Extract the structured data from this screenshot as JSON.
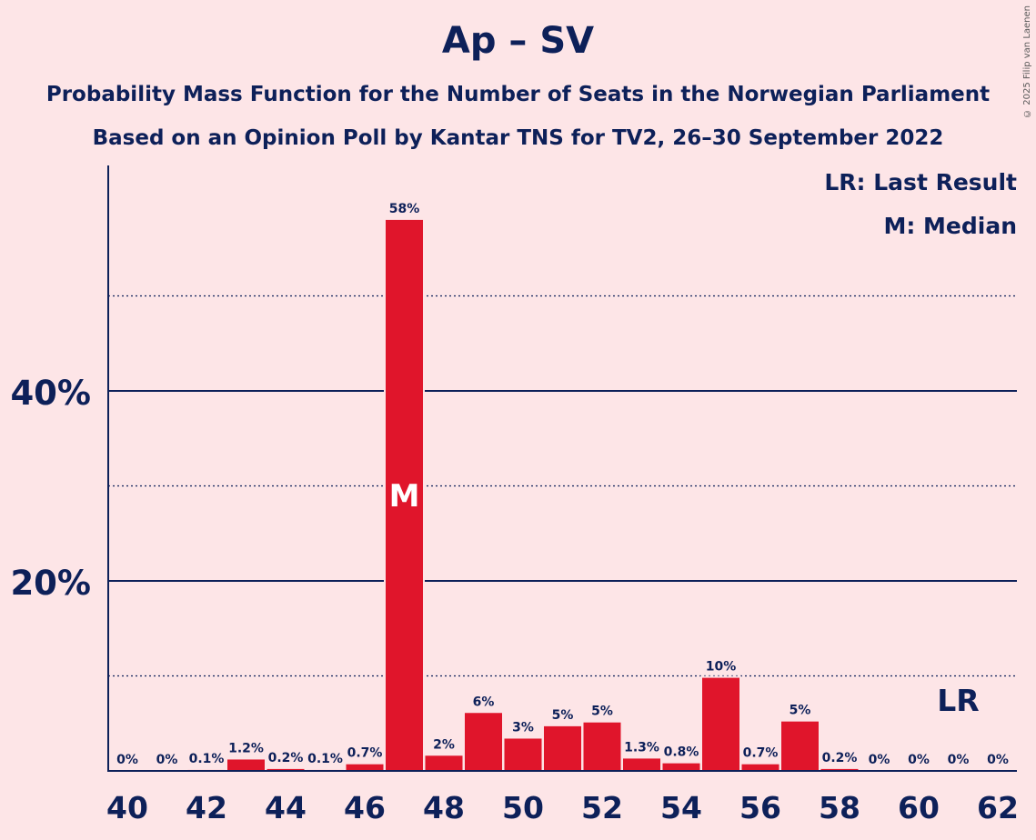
{
  "title": "Ap – SV",
  "subtitle_1": "Probability Mass Function for the Number of Seats in the Norwegian Parliament",
  "subtitle_2": "Based on an Opinion Poll by Kantar TNS for TV2, 26–30 September 2022",
  "copyright": "© 2025 Filip van Laenen",
  "legend": {
    "last_result": "LR: Last Result",
    "median": "M: Median"
  },
  "markers": {
    "median_label": "M",
    "median_seat": 47,
    "last_result_label": "LR",
    "last_result_seat": 61
  },
  "colors": {
    "background": "#fde5e7",
    "bar": "#e0152b",
    "text": "#0d2059"
  },
  "chart_data": {
    "type": "bar",
    "categories": [
      40,
      41,
      42,
      43,
      44,
      45,
      46,
      47,
      48,
      49,
      50,
      51,
      52,
      53,
      54,
      55,
      56,
      57,
      58,
      59,
      60,
      61,
      62
    ],
    "values": [
      0,
      0,
      0.1,
      1.2,
      0.2,
      0.1,
      0.7,
      58,
      1.6,
      6.1,
      3.4,
      4.7,
      5.1,
      1.3,
      0.8,
      9.8,
      0.7,
      5.2,
      0.2,
      0,
      0,
      0,
      0
    ],
    "data_labels": [
      "0%",
      "0%",
      "0.1%",
      "1.2%",
      "0.2%",
      "0.1%",
      "0.7%",
      "58%",
      "2%",
      "6%",
      "3%",
      "5%",
      "5%",
      "1.3%",
      "0.8%",
      "10%",
      "0.7%",
      "5%",
      "0.2%",
      "0%",
      "0%",
      "0%",
      "0%"
    ],
    "x_tick_labels": [
      "40",
      "42",
      "44",
      "46",
      "48",
      "50",
      "52",
      "54",
      "56",
      "58",
      "60",
      "62"
    ],
    "y_tick_labels": [
      "20%",
      "40%"
    ],
    "y_major_ticks": [
      20,
      40
    ],
    "y_minor_gridlines": [
      10,
      30,
      50
    ],
    "ylim": [
      0,
      63
    ],
    "grid": true,
    "legend_position": "top-right"
  }
}
